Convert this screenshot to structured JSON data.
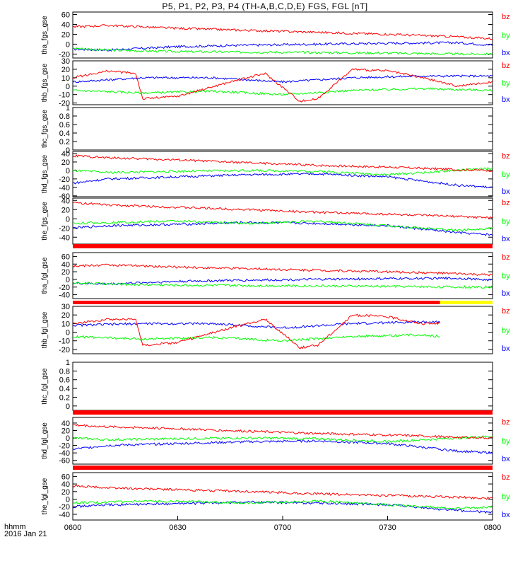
{
  "title": "P5, P1, P2, P3, P4 (TH-A,B,C,D,E) FGS, FGL [nT]",
  "colors": {
    "bx": "#0000ff",
    "by": "#00ff00",
    "bz": "#ff0000",
    "bar": "#ff0000",
    "bar_alt": "#ffff00",
    "axis": "#000000"
  },
  "footer": {
    "time_label": "hhmm",
    "date_label": "2016 Jan 21"
  },
  "chart_data": [
    {
      "type": "line",
      "ylabel": "tha_fgs_gse",
      "ylim": [
        -28,
        65
      ],
      "yticks": [
        -20,
        0,
        20,
        40,
        60
      ],
      "legend": [
        "bz",
        "by",
        "bx"
      ],
      "series": [
        {
          "name": "bz",
          "x": [
            0,
            10,
            30,
            50,
            70,
            90,
            110,
            120
          ],
          "values": [
            35,
            38,
            32,
            28,
            24,
            20,
            15,
            11
          ]
        },
        {
          "name": "by",
          "x": [
            0,
            10,
            30,
            50,
            70,
            90,
            110,
            120
          ],
          "values": [
            -8,
            -12,
            -15,
            -16,
            -17,
            -18,
            -20,
            -20
          ]
        },
        {
          "name": "bx",
          "x": [
            0,
            10,
            30,
            50,
            70,
            90,
            110,
            120
          ],
          "values": [
            -10,
            -12,
            -5,
            -2,
            0,
            2,
            3,
            -2
          ]
        }
      ]
    },
    {
      "type": "line",
      "ylabel": "thb_fgs_gse",
      "ylim": [
        -22,
        30
      ],
      "yticks": [
        -20,
        -10,
        0,
        10,
        20,
        30
      ],
      "legend": [
        "bz",
        "by",
        "bx"
      ],
      "series": [
        {
          "name": "bz",
          "x": [
            0,
            10,
            18,
            20,
            30,
            45,
            55,
            65,
            70,
            80,
            90,
            100,
            110,
            120
          ],
          "values": [
            10,
            18,
            15,
            -15,
            -12,
            5,
            15,
            -18,
            -15,
            20,
            18,
            10,
            0,
            5
          ]
        },
        {
          "name": "by",
          "x": [
            0,
            20,
            40,
            60,
            80,
            100,
            120
          ],
          "values": [
            -5,
            -8,
            -6,
            -10,
            -5,
            -3,
            -5
          ]
        },
        {
          "name": "bx",
          "x": [
            0,
            20,
            40,
            60,
            80,
            100,
            120
          ],
          "values": [
            5,
            10,
            10,
            5,
            10,
            12,
            12
          ]
        }
      ]
    },
    {
      "type": "line",
      "ylabel": "thc_fgs_gse",
      "ylim": [
        0,
        1.0
      ],
      "yticks": [
        0,
        0.2,
        0.4,
        0.6,
        0.8,
        1.0
      ],
      "legend": [],
      "series": []
    },
    {
      "type": "line",
      "ylabel": "thd_fgs_gse",
      "ylim": [
        -62,
        45
      ],
      "yticks": [
        -60,
        -40,
        -20,
        0,
        20,
        40
      ],
      "legend": [
        "bz",
        "by",
        "bx"
      ],
      "series": [
        {
          "name": "bz",
          "x": [
            0,
            10,
            30,
            50,
            70,
            90,
            110,
            120
          ],
          "values": [
            35,
            30,
            25,
            18,
            12,
            8,
            2,
            0
          ]
        },
        {
          "name": "by",
          "x": [
            0,
            10,
            30,
            50,
            70,
            90,
            110,
            120
          ],
          "values": [
            0,
            -5,
            -2,
            0,
            -2,
            -10,
            0,
            5
          ]
        },
        {
          "name": "bx",
          "x": [
            0,
            10,
            30,
            50,
            70,
            90,
            110,
            120
          ],
          "values": [
            -30,
            -20,
            -15,
            -10,
            -8,
            -15,
            -35,
            -40
          ]
        }
      ]
    },
    {
      "type": "line",
      "ylabel": "the_fgs_gse",
      "ylim": [
        -55,
        45
      ],
      "yticks": [
        -40,
        -20,
        0,
        20,
        40
      ],
      "legend": [
        "bz",
        "by",
        "bx"
      ],
      "series": [
        {
          "name": "bz",
          "x": [
            0,
            10,
            30,
            50,
            70,
            90,
            110,
            120
          ],
          "values": [
            35,
            30,
            25,
            20,
            14,
            10,
            5,
            2
          ]
        },
        {
          "name": "by",
          "x": [
            0,
            10,
            30,
            50,
            70,
            90,
            110,
            120
          ],
          "values": [
            -10,
            -8,
            -5,
            -10,
            -5,
            -15,
            -25,
            -20
          ]
        },
        {
          "name": "bx",
          "x": [
            0,
            10,
            30,
            50,
            70,
            90,
            110,
            120
          ],
          "values": [
            -20,
            -15,
            -12,
            -8,
            -10,
            -15,
            -30,
            -35
          ]
        }
      ]
    },
    {
      "type": "line",
      "ylabel": "tha_fgl_gse",
      "ylim": [
        -50,
        70
      ],
      "yticks": [
        -40,
        -20,
        0,
        20,
        40,
        60
      ],
      "legend": [
        "bz",
        "by",
        "bx"
      ],
      "series": [
        {
          "name": "bz",
          "x": [
            0,
            10,
            30,
            50,
            70,
            90,
            110,
            120
          ],
          "values": [
            35,
            38,
            32,
            28,
            24,
            20,
            15,
            11
          ]
        },
        {
          "name": "by",
          "x": [
            0,
            10,
            30,
            50,
            70,
            90,
            110,
            120
          ],
          "values": [
            -8,
            -12,
            -15,
            -16,
            -17,
            -18,
            -20,
            -20
          ]
        },
        {
          "name": "bx",
          "x": [
            0,
            10,
            30,
            50,
            70,
            90,
            110,
            120
          ],
          "values": [
            -10,
            -12,
            -5,
            -2,
            0,
            2,
            3,
            -2
          ]
        }
      ]
    },
    {
      "type": "line",
      "ylabel": "thb_fgl_gse",
      "ylim": [
        -25,
        30
      ],
      "yticks": [
        -20,
        -10,
        0,
        10,
        20,
        30
      ],
      "legend": [
        "bz",
        "by",
        "bx"
      ],
      "series": [
        {
          "name": "bz",
          "x": [
            0,
            10,
            18,
            20,
            30,
            45,
            55,
            65,
            70,
            80,
            90,
            100,
            105
          ],
          "values": [
            10,
            15,
            15,
            -15,
            -12,
            5,
            15,
            -18,
            -15,
            20,
            18,
            10,
            10
          ]
        },
        {
          "name": "by",
          "x": [
            0,
            20,
            40,
            60,
            80,
            100,
            105
          ],
          "values": [
            -5,
            -8,
            -6,
            -10,
            -5,
            -3,
            -5
          ]
        },
        {
          "name": "bx",
          "x": [
            0,
            20,
            40,
            60,
            80,
            100,
            105
          ],
          "values": [
            8,
            10,
            10,
            5,
            10,
            12,
            12
          ]
        }
      ]
    },
    {
      "type": "line",
      "ylabel": "thc_fgl_gse",
      "ylim": [
        -0.1,
        1.0
      ],
      "yticks": [
        0,
        0.2,
        0.4,
        0.6,
        0.8,
        1.0
      ],
      "legend": [],
      "series": []
    },
    {
      "type": "line",
      "ylabel": "thd_fgl_gse",
      "ylim": [
        -70,
        55
      ],
      "yticks": [
        -60,
        -40,
        -20,
        0,
        20,
        40
      ],
      "legend": [
        "bz",
        "by",
        "bx"
      ],
      "series": [
        {
          "name": "bz",
          "x": [
            0,
            10,
            30,
            50,
            70,
            90,
            110,
            120
          ],
          "values": [
            35,
            30,
            25,
            18,
            12,
            8,
            2,
            0
          ]
        },
        {
          "name": "by",
          "x": [
            0,
            10,
            30,
            50,
            70,
            90,
            110,
            120
          ],
          "values": [
            0,
            -5,
            -2,
            0,
            -2,
            -10,
            0,
            5
          ]
        },
        {
          "name": "bx",
          "x": [
            0,
            10,
            30,
            50,
            70,
            90,
            110,
            120
          ],
          "values": [
            -30,
            -20,
            -15,
            -10,
            -8,
            -15,
            -35,
            -40
          ]
        }
      ]
    },
    {
      "type": "line",
      "ylabel": "the_fgl_gse",
      "ylim": [
        -55,
        70
      ],
      "yticks": [
        -40,
        -20,
        0,
        20,
        40,
        60
      ],
      "legend": [
        "bz",
        "by",
        "bx"
      ],
      "series": [
        {
          "name": "bz",
          "x": [
            0,
            10,
            30,
            50,
            70,
            90,
            110,
            120
          ],
          "values": [
            35,
            30,
            25,
            20,
            14,
            10,
            5,
            2
          ]
        },
        {
          "name": "by",
          "x": [
            0,
            10,
            30,
            50,
            70,
            90,
            110,
            120
          ],
          "values": [
            -10,
            -8,
            -5,
            -10,
            -5,
            -15,
            -25,
            -20
          ]
        },
        {
          "name": "bx",
          "x": [
            0,
            10,
            30,
            50,
            70,
            90,
            110,
            120
          ],
          "values": [
            -20,
            -15,
            -12,
            -8,
            -10,
            -15,
            -30,
            -35
          ]
        }
      ]
    }
  ],
  "xaxis": {
    "range": [
      0,
      120
    ],
    "ticks": [
      0,
      30,
      60,
      90,
      120
    ],
    "tick_labels": [
      "0600",
      "0630",
      "0700",
      "0730",
      "0800"
    ]
  }
}
